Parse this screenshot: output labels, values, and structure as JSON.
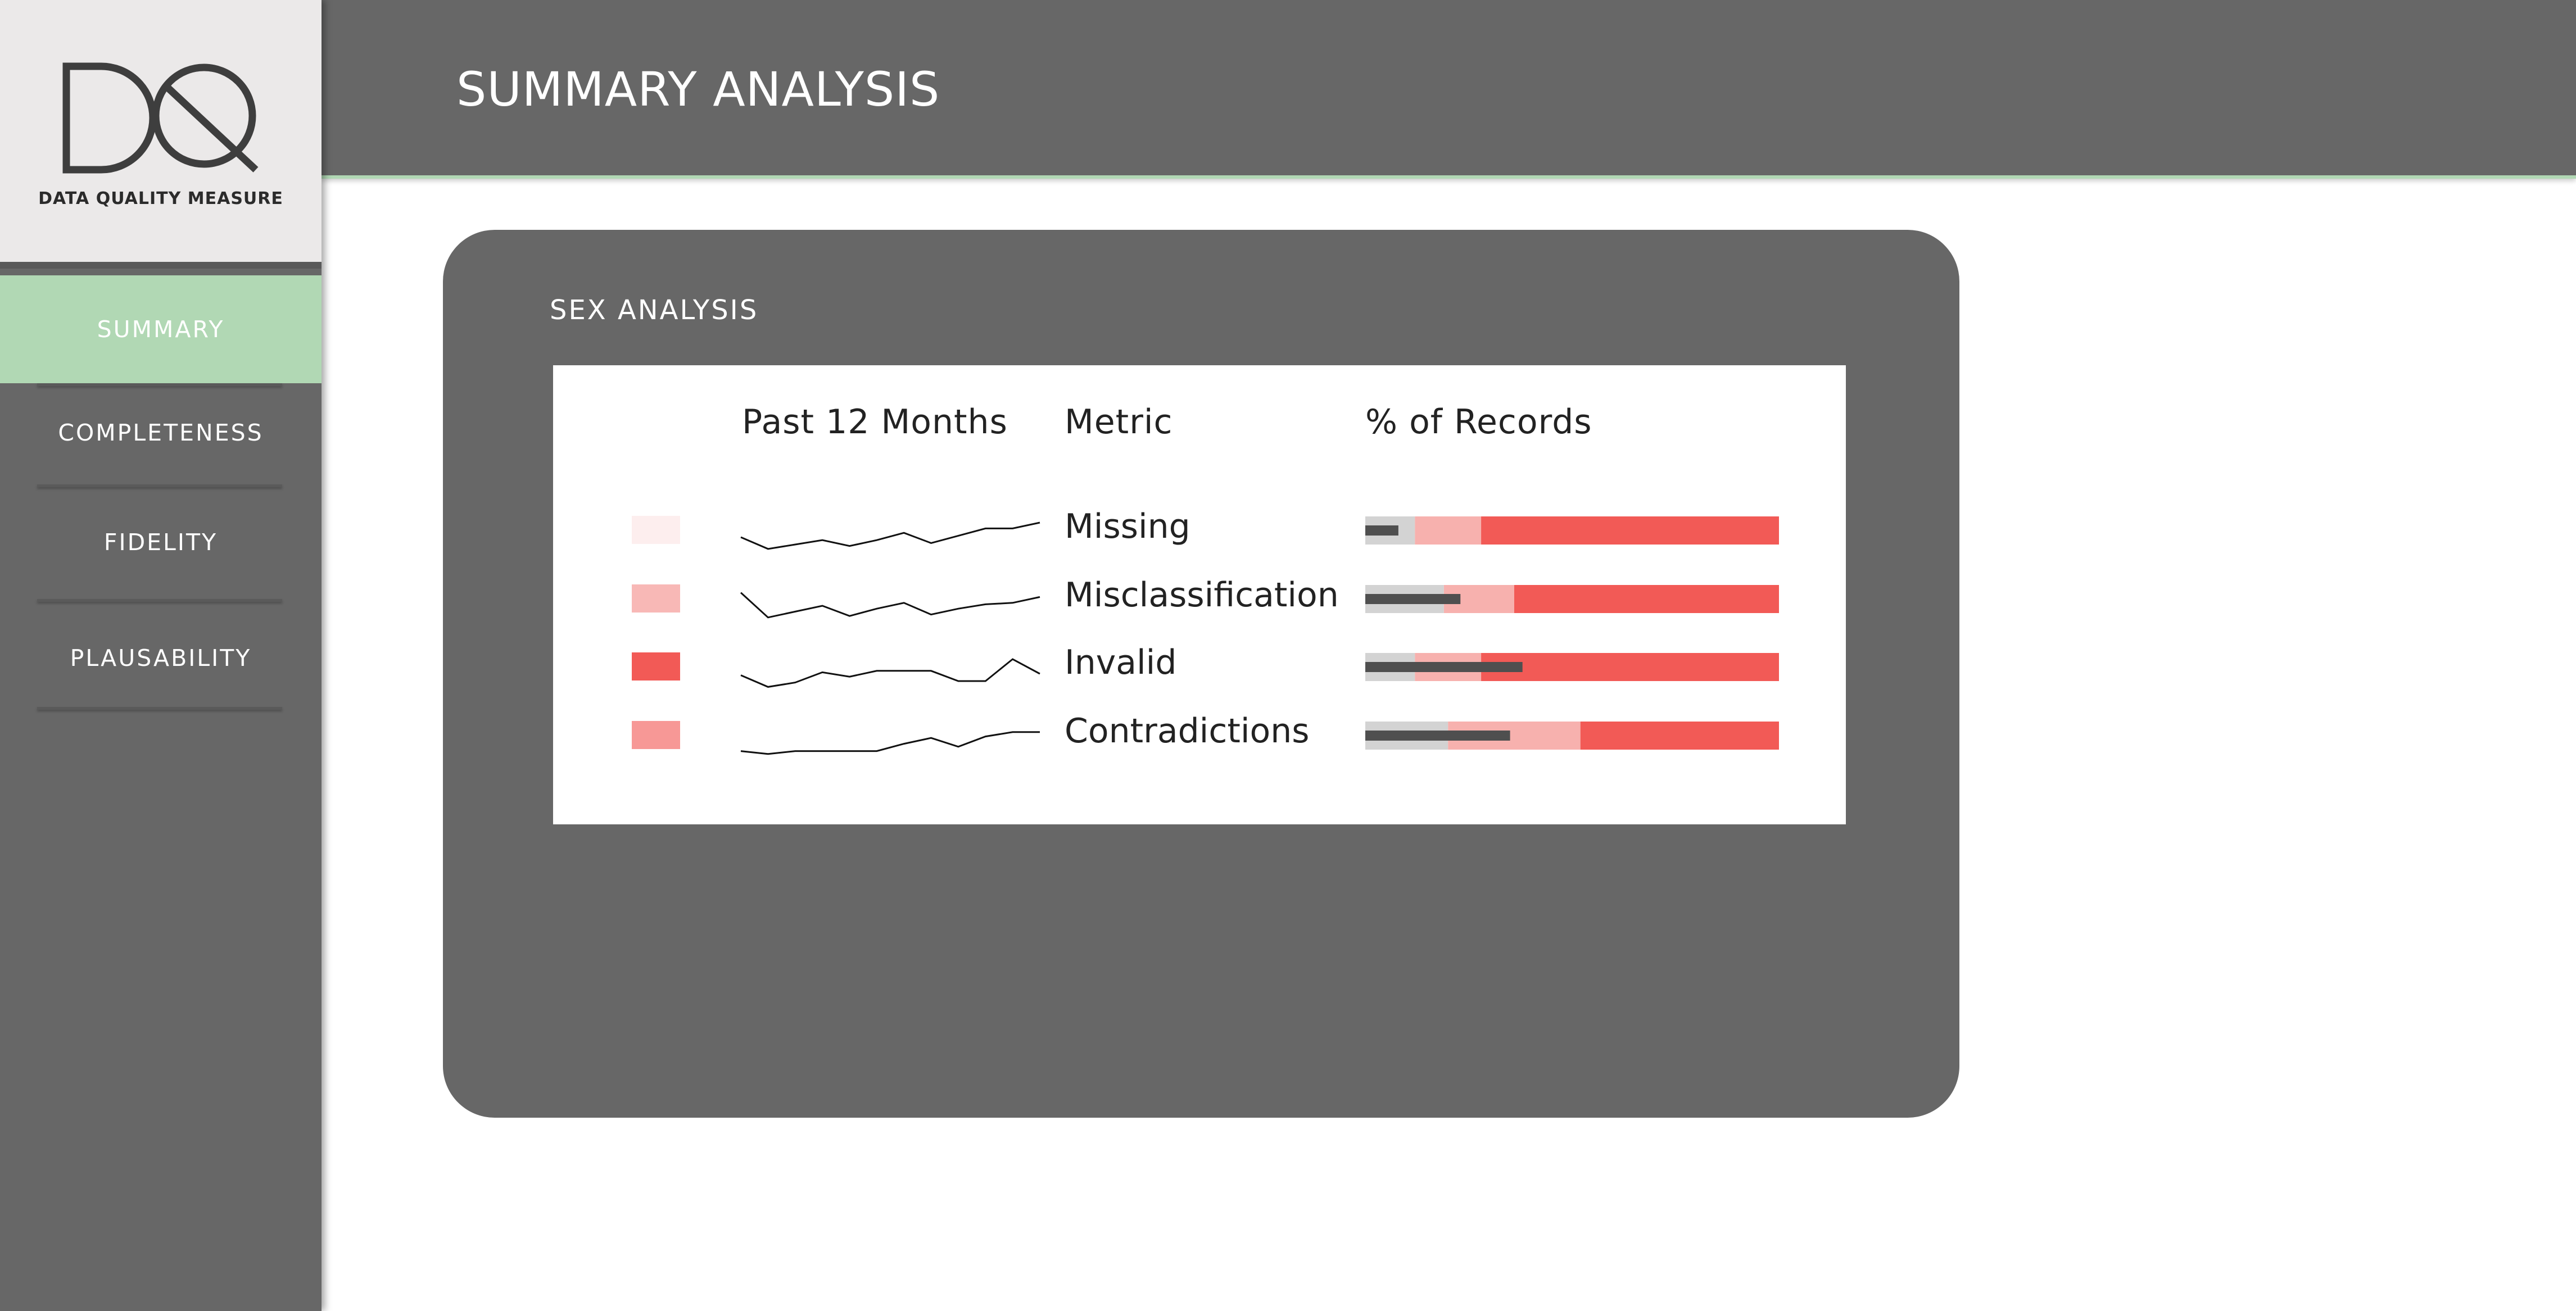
{
  "brand": {
    "logo_letters": "DQ",
    "logo_text": "DATA QUALITY MEASURE"
  },
  "sidebar": {
    "items": [
      {
        "label": "SUMMARY",
        "active": true
      },
      {
        "label": "COMPLETENESS",
        "active": false
      },
      {
        "label": "FIDELITY",
        "active": false
      },
      {
        "label": "PLAUSABILITY",
        "active": false
      }
    ]
  },
  "header": {
    "title": "SUMMARY ANALYSIS"
  },
  "card": {
    "title": "SEX ANALYSIS",
    "columns": {
      "trend": "Past 12 Months",
      "metric": "Metric",
      "percent": "% of Records"
    },
    "rows": [
      {
        "metric": "Missing",
        "swatch_color": "#fdeeee",
        "trend": [
          0.5,
          0.1,
          0.25,
          0.4,
          0.2,
          0.4,
          0.65,
          0.3,
          0.55,
          0.8,
          0.8,
          1.0
        ],
        "bands": [
          0.12,
          0.28,
          1.0
        ],
        "value": 0.08
      },
      {
        "metric": "Misclassification",
        "swatch_color": "#f8b8b6",
        "trend": [
          0.95,
          0.1,
          0.3,
          0.5,
          0.15,
          0.4,
          0.6,
          0.2,
          0.4,
          0.55,
          0.6,
          0.8
        ],
        "bands": [
          0.19,
          0.36,
          1.0
        ],
        "value": 0.23
      },
      {
        "metric": "Invalid",
        "swatch_color": "#f25a56",
        "trend": [
          0.45,
          0.05,
          0.2,
          0.55,
          0.4,
          0.6,
          0.6,
          0.6,
          0.25,
          0.25,
          1.0,
          0.5
        ],
        "bands": [
          0.12,
          0.28,
          1.0
        ],
        "value": 0.38
      },
      {
        "metric": "Contradictions",
        "swatch_color": "#f79896",
        "trend": [
          0.2,
          0.1,
          0.2,
          0.2,
          0.2,
          0.2,
          0.45,
          0.65,
          0.35,
          0.7,
          0.85,
          0.85
        ],
        "bands": [
          0.2,
          0.52,
          1.0
        ],
        "value": 0.35
      }
    ]
  },
  "colors": {
    "panel": "#676767",
    "accent_green": "#b1d8b4",
    "band_low": "#d3d3d3",
    "band_mid": "#f7b1ae",
    "band_high": "#f25a56",
    "bar_value": "#4f4f4f"
  }
}
